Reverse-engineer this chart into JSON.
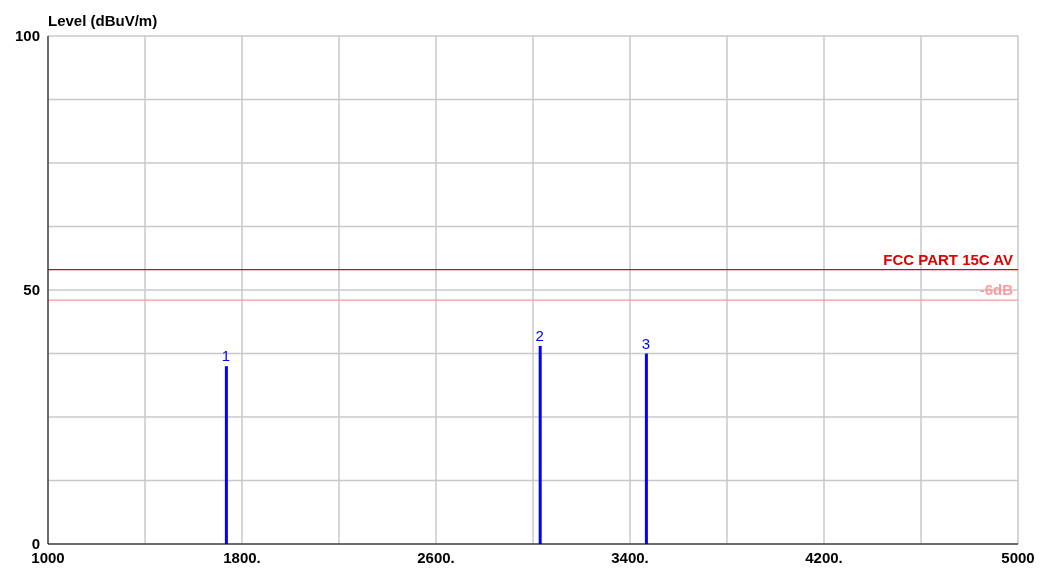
{
  "chart_data": {
    "type": "bar",
    "ylabel": "Level (dBuV/m)",
    "x": [
      1734,
      3028,
      3466
    ],
    "series": [
      {
        "color": "#0000ff",
        "values": [
          35,
          39,
          37.5
        ]
      }
    ],
    "xlim": [
      1000,
      5000
    ],
    "xticks": [
      1000,
      {
        "value": 1400,
        "label": null
      },
      {
        "value": 1800,
        "label": "1800."
      },
      {
        "value": 2200,
        "label": null
      },
      {
        "value": 2600,
        "label": "2600."
      },
      {
        "value": 3000,
        "label": null
      },
      {
        "value": 3400,
        "label": "3400."
      },
      {
        "value": 3800,
        "label": null
      },
      {
        "value": 4200,
        "label": "4200."
      },
      {
        "value": 4600,
        "label": null
      },
      5000
    ],
    "ylim": [
      0,
      100
    ],
    "yticks": [
      0,
      {
        "value": 12.5,
        "label": null
      },
      {
        "value": 25,
        "label": null
      },
      {
        "value": 37.5,
        "label": null
      },
      50,
      {
        "value": 62.5,
        "label": null
      },
      {
        "value": 75,
        "label": null
      },
      {
        "value": 87.5,
        "label": null
      },
      100
    ],
    "ref_lines": [
      {
        "axis": "y",
        "value": 54,
        "label": "FCC PART 15C AV",
        "color": "#e00000"
      },
      {
        "axis": "y",
        "value": 48,
        "label": "-6dB",
        "color": "#ff9999"
      }
    ],
    "annotations": [
      {
        "text": "1",
        "x": 1734,
        "y": 35
      },
      {
        "text": "2",
        "x": 3028,
        "y": 39
      },
      {
        "text": "3",
        "x": 3466,
        "y": 37.5
      }
    ],
    "grid": true
  }
}
